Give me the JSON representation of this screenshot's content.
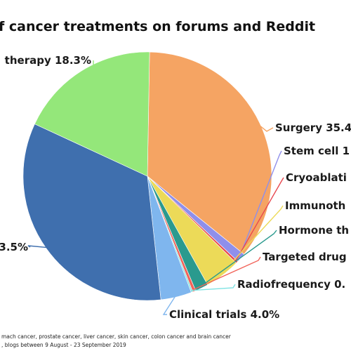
{
  "chart_data": {
    "type": "pie",
    "title": "f cancer treatments on forums and Reddit",
    "slices": [
      {
        "label": "Surgery 35.4",
        "value": 35.4,
        "color": "#F5A463"
      },
      {
        "label": "Stem cell 1",
        "value": 1.2,
        "color": "#8F8FEB"
      },
      {
        "label": "Cryoablati",
        "value": 0.3,
        "color": "#E8484F"
      },
      {
        "label": "Immunoth",
        "value": 4.6,
        "color": "#ECDA58"
      },
      {
        "label": "Hormone th",
        "value": 1.7,
        "color": "#2A9A8E"
      },
      {
        "label": "Targeted drug",
        "value": 0.4,
        "color": "#F2645A"
      },
      {
        "label": "Radiofrequency 0.",
        "value": 0.2,
        "color": "#7FE3E3"
      },
      {
        "label": "Clinical trials 4.0%",
        "value": 4.0,
        "color": "#7FB6EE"
      },
      {
        "label": "3.5%",
        "value": 33.5,
        "color": "#3F6FAE"
      },
      {
        "label": "therapy 18.3%",
        "value": 18.3,
        "color": "#94E77A"
      }
    ],
    "footer": [
      "mach cancer, prostate cancer, liver cancer, skin cancer, colon cancer and brain cancer",
      ", blogs between 9 August - 23 September 2019"
    ]
  }
}
